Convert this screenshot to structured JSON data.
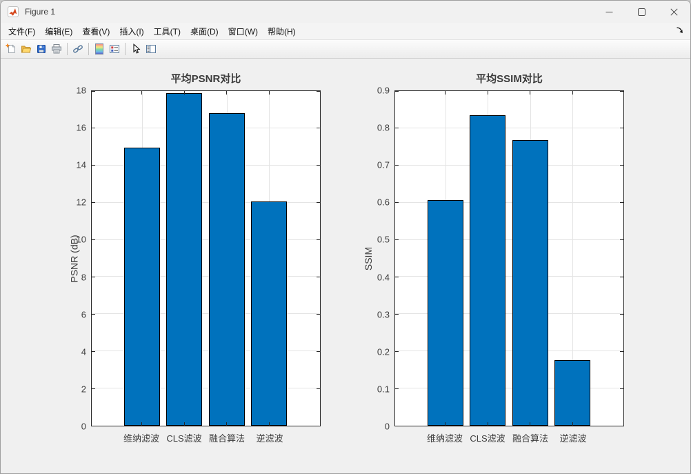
{
  "window": {
    "title": "Figure 1",
    "app_icon": "matlab-logo-icon",
    "control_icons": [
      "minimize-icon",
      "maximize-icon",
      "close-icon"
    ]
  },
  "menubar": {
    "items": [
      "文件(F)",
      "编辑(E)",
      "查看(V)",
      "插入(I)",
      "工具(T)",
      "桌面(D)",
      "窗口(W)",
      "帮助(H)"
    ],
    "dock_arrow_icon": "dock-figure-arrow-icon"
  },
  "toolbar": {
    "icons": [
      "new-figure-icon",
      "open-file-icon",
      "save-figure-icon",
      "print-figure-icon",
      "link-plot-icon",
      "insert-colorbar-icon",
      "insert-legend-icon",
      "edit-plot-arrow-icon",
      "plot-browser-icon"
    ]
  },
  "colors": {
    "figure_background": "#f0f0f0",
    "plot_background": "#ffffff",
    "bar_fill": "#0072BD",
    "grid_line": "#e4e4e4",
    "axis_line": "#262626"
  },
  "chart_data": [
    {
      "type": "bar",
      "title": "平均PSNR对比",
      "xlabel": "",
      "ylabel": "PSNR (dB)",
      "categories": [
        "维纳滤波",
        "CLS滤波",
        "融合算法",
        "逆滤波"
      ],
      "values": [
        14.95,
        17.9,
        16.8,
        12.05
      ],
      "ylim": [
        0,
        18
      ],
      "yticks": [
        0,
        2,
        4,
        6,
        8,
        10,
        12,
        14,
        16,
        18
      ],
      "ytick_labels": [
        "0",
        "2",
        "4",
        "6",
        "8",
        "10",
        "12",
        "14",
        "16",
        "18"
      ],
      "grid": true,
      "legend": "none",
      "bar_color": "#0072BD",
      "bar_edge_color": "#000000"
    },
    {
      "type": "bar",
      "title": "平均SSIM对比",
      "xlabel": "",
      "ylabel": "SSIM",
      "categories": [
        "维纳滤波",
        "CLS滤波",
        "融合算法",
        "逆滤波"
      ],
      "values": [
        0.607,
        0.835,
        0.769,
        0.177
      ],
      "ylim": [
        0,
        0.9
      ],
      "yticks": [
        0,
        0.1,
        0.2,
        0.3,
        0.4,
        0.5,
        0.6,
        0.7,
        0.8,
        0.9
      ],
      "ytick_labels": [
        "0",
        "0.1",
        "0.2",
        "0.3",
        "0.4",
        "0.5",
        "0.6",
        "0.7",
        "0.8",
        "0.9"
      ],
      "grid": true,
      "legend": "none",
      "bar_color": "#0072BD",
      "bar_edge_color": "#000000"
    }
  ]
}
